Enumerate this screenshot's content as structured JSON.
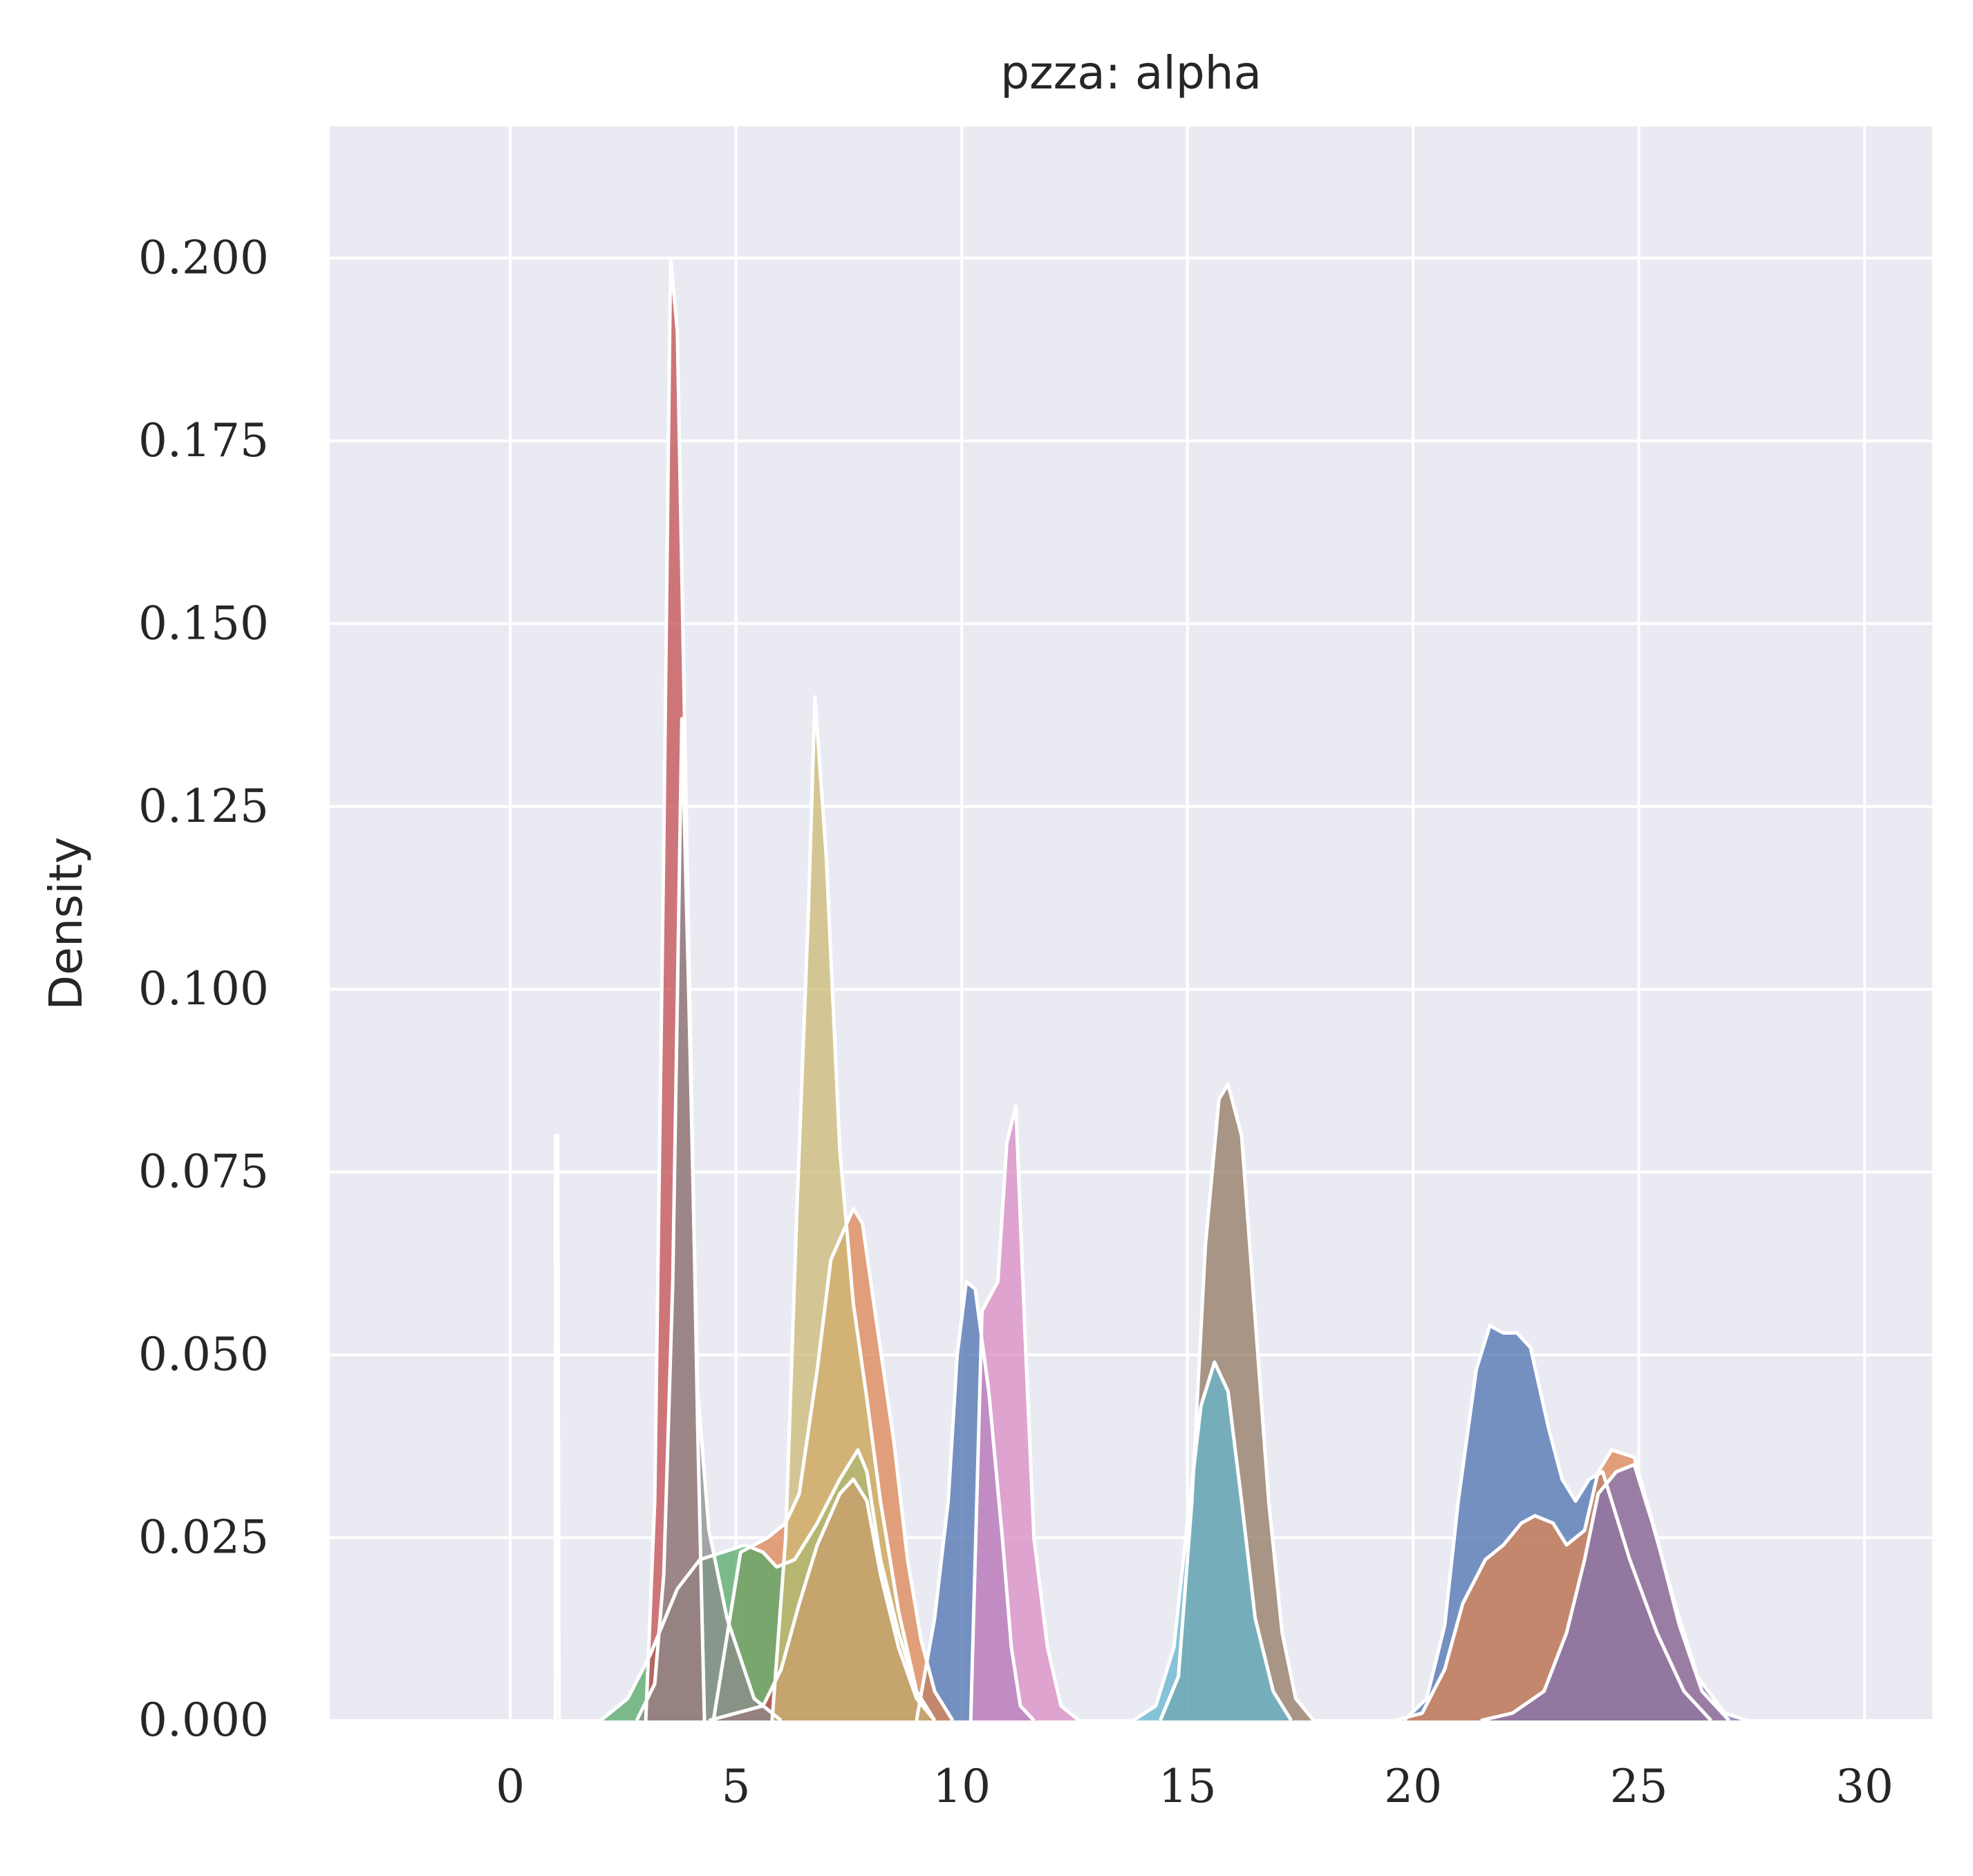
{
  "chart_data": {
    "type": "area",
    "title": "pzza:  alpha",
    "xlabel": "",
    "ylabel": "Density",
    "xlim": [
      -4,
      31.5
    ],
    "ylim": [
      0,
      0.218
    ],
    "x_ticks": [
      0,
      5,
      10,
      15,
      20,
      25,
      30
    ],
    "x_tick_labels": [
      "0",
      "5",
      "10",
      "15",
      "20",
      "25",
      "30"
    ],
    "y_ticks": [
      0,
      0.025,
      0.05,
      0.075,
      0.1,
      0.125,
      0.15,
      0.175,
      0.2
    ],
    "y_tick_labels": [
      "0.000",
      "0.025",
      "0.050",
      "0.075",
      "0.100",
      "0.125",
      "0.150",
      "0.175",
      "0.200"
    ],
    "grid": true,
    "legend": "none",
    "colors": {
      "background": "#eaeaf2",
      "grid": "#ffffff",
      "outline": "#ffffff"
    },
    "series": [
      {
        "color": "#4c72b0",
        "points": [
          [
            9.0,
            0
          ],
          [
            9.4,
            0.014
          ],
          [
            9.7,
            0.03
          ],
          [
            9.9,
            0.05
          ],
          [
            10.1,
            0.06
          ],
          [
            10.3,
            0.059
          ],
          [
            10.6,
            0.045
          ],
          [
            10.9,
            0.025
          ],
          [
            11.1,
            0.01
          ],
          [
            11.3,
            0.002
          ],
          [
            11.6,
            0
          ]
        ]
      },
      {
        "color": "#4c72b0",
        "points": [
          [
            19.8,
            0
          ],
          [
            20.3,
            0.003
          ],
          [
            20.7,
            0.013
          ],
          [
            21.0,
            0.03
          ],
          [
            21.4,
            0.048
          ],
          [
            21.7,
            0.054
          ],
          [
            22.0,
            0.053
          ],
          [
            22.3,
            0.053
          ],
          [
            22.6,
            0.051
          ],
          [
            23.0,
            0.04
          ],
          [
            23.3,
            0.033
          ],
          [
            23.6,
            0.03
          ],
          [
            23.9,
            0.033
          ],
          [
            24.2,
            0.034
          ],
          [
            24.8,
            0.022
          ],
          [
            25.4,
            0.012
          ],
          [
            26.0,
            0.004
          ],
          [
            26.6,
            0
          ]
        ]
      },
      {
        "color": "#dd8452",
        "points": [
          [
            4.5,
            0
          ],
          [
            5.1,
            0.023
          ],
          [
            5.7,
            0.025
          ],
          [
            6.1,
            0.027
          ],
          [
            6.4,
            0.031
          ],
          [
            6.8,
            0.048
          ],
          [
            7.1,
            0.063
          ],
          [
            7.6,
            0.07
          ],
          [
            7.8,
            0.068
          ],
          [
            8.1,
            0.055
          ],
          [
            8.5,
            0.038
          ],
          [
            8.8,
            0.022
          ],
          [
            9.1,
            0.011
          ],
          [
            9.4,
            0.004
          ],
          [
            9.8,
            0
          ]
        ]
      },
      {
        "color": "#dd8452",
        "points": [
          [
            19.6,
            0
          ],
          [
            20.2,
            0.001
          ],
          [
            20.7,
            0.007
          ],
          [
            21.1,
            0.016
          ],
          [
            21.6,
            0.022
          ],
          [
            22.0,
            0.024
          ],
          [
            22.4,
            0.027
          ],
          [
            22.7,
            0.028
          ],
          [
            23.1,
            0.027
          ],
          [
            23.4,
            0.024
          ],
          [
            23.8,
            0.026
          ],
          [
            24.1,
            0.034
          ],
          [
            24.4,
            0.037
          ],
          [
            24.9,
            0.036
          ],
          [
            25.4,
            0.025
          ],
          [
            25.9,
            0.013
          ],
          [
            26.4,
            0.004
          ],
          [
            27.0,
            0
          ]
        ]
      },
      {
        "color": "#55a868",
        "points": [
          [
            1.0,
            0
          ],
          [
            1.0,
            0.08
          ],
          [
            1.05,
            0.08
          ],
          [
            1.08,
            0
          ]
        ]
      },
      {
        "color": "#55a868",
        "points": [
          [
            2.0,
            0
          ],
          [
            2.6,
            0.003
          ],
          [
            3.1,
            0.009
          ],
          [
            3.7,
            0.018
          ],
          [
            4.2,
            0.022
          ],
          [
            4.7,
            0.023
          ],
          [
            5.2,
            0.024
          ],
          [
            5.6,
            0.023
          ],
          [
            5.9,
            0.021
          ],
          [
            6.3,
            0.022
          ],
          [
            6.8,
            0.027
          ],
          [
            7.3,
            0.033
          ],
          [
            7.7,
            0.037
          ],
          [
            7.9,
            0.034
          ],
          [
            8.2,
            0.022
          ],
          [
            8.6,
            0.012
          ],
          [
            9.0,
            0.004
          ],
          [
            9.4,
            0
          ]
        ]
      },
      {
        "color": "#c44e52",
        "points": [
          [
            3.0,
            0
          ],
          [
            3.2,
            0.03
          ],
          [
            3.4,
            0.12
          ],
          [
            3.55,
            0.2
          ],
          [
            3.7,
            0.19
          ],
          [
            3.85,
            0.14
          ],
          [
            4.0,
            0.09
          ],
          [
            4.15,
            0.04
          ],
          [
            4.3,
            0
          ]
        ]
      },
      {
        "color": "#c44e52",
        "points": [
          [
            4.4,
            0
          ],
          [
            5.0,
            0.001
          ],
          [
            5.6,
            0.002
          ],
          [
            6.0,
            0.007
          ],
          [
            6.4,
            0.016
          ],
          [
            6.8,
            0.024
          ],
          [
            7.3,
            0.031
          ],
          [
            7.6,
            0.033
          ],
          [
            7.9,
            0.03
          ],
          [
            8.2,
            0.02
          ],
          [
            8.6,
            0.01
          ],
          [
            9.0,
            0.003
          ],
          [
            9.4,
            0
          ]
        ]
      },
      {
        "color": "#8172b3",
        "points": [
          [
            21.5,
            0
          ],
          [
            22.2,
            0.001
          ],
          [
            22.9,
            0.004
          ],
          [
            23.4,
            0.012
          ],
          [
            23.8,
            0.022
          ],
          [
            24.1,
            0.031
          ],
          [
            24.5,
            0.034
          ],
          [
            24.9,
            0.035
          ],
          [
            25.3,
            0.027
          ],
          [
            25.8,
            0.016
          ],
          [
            26.3,
            0.006
          ],
          [
            26.9,
            0.001
          ],
          [
            27.4,
            0
          ]
        ]
      },
      {
        "color": "#937860",
        "points": [
          [
            14.4,
            0
          ],
          [
            14.8,
            0.006
          ],
          [
            15.1,
            0.03
          ],
          [
            15.4,
            0.065
          ],
          [
            15.7,
            0.085
          ],
          [
            15.9,
            0.087
          ],
          [
            16.2,
            0.08
          ],
          [
            16.5,
            0.055
          ],
          [
            16.8,
            0.03
          ],
          [
            17.1,
            0.012
          ],
          [
            17.4,
            0.003
          ],
          [
            17.8,
            0
          ]
        ]
      },
      {
        "color": "#da8bc3",
        "points": [
          [
            10.2,
            0
          ],
          [
            10.45,
            0.056
          ],
          [
            10.8,
            0.06
          ],
          [
            11.0,
            0.079
          ],
          [
            11.2,
            0.084
          ],
          [
            11.4,
            0.053
          ],
          [
            11.6,
            0.025
          ],
          [
            11.9,
            0.01
          ],
          [
            12.2,
            0.002
          ],
          [
            12.6,
            0
          ]
        ]
      },
      {
        "color": "#8c8c8c",
        "points": [
          [
            2.8,
            0
          ],
          [
            3.2,
            0.005
          ],
          [
            3.4,
            0.02
          ],
          [
            3.6,
            0.06
          ],
          [
            3.8,
            0.137
          ],
          [
            3.95,
            0.1
          ],
          [
            4.15,
            0.045
          ],
          [
            4.4,
            0.026
          ],
          [
            4.8,
            0.014
          ],
          [
            5.4,
            0.003
          ],
          [
            6.0,
            0
          ]
        ]
      },
      {
        "color": "#ccb974",
        "points": [
          [
            5.8,
            0
          ],
          [
            6.1,
            0.025
          ],
          [
            6.35,
            0.07
          ],
          [
            6.6,
            0.11
          ],
          [
            6.75,
            0.14
          ],
          [
            7.0,
            0.118
          ],
          [
            7.3,
            0.078
          ],
          [
            7.6,
            0.057
          ],
          [
            7.9,
            0.044
          ],
          [
            8.2,
            0.03
          ],
          [
            8.6,
            0.015
          ],
          [
            9.0,
            0.004
          ],
          [
            9.4,
            0
          ]
        ]
      },
      {
        "color": "#64b5cd",
        "points": [
          [
            13.8,
            0
          ],
          [
            14.3,
            0.002
          ],
          [
            14.7,
            0.01
          ],
          [
            15.0,
            0.027
          ],
          [
            15.3,
            0.043
          ],
          [
            15.6,
            0.049
          ],
          [
            15.9,
            0.045
          ],
          [
            16.2,
            0.03
          ],
          [
            16.5,
            0.014
          ],
          [
            16.9,
            0.004
          ],
          [
            17.3,
            0
          ]
        ]
      }
    ]
  }
}
